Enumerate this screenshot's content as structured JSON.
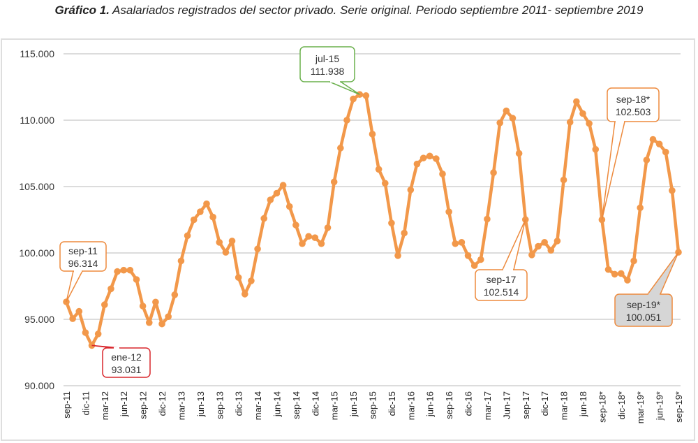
{
  "title": {
    "bold": "Gráfico 1.",
    "rest": " Asalariados registrados del sector privado. Serie original. Periodo septiembre 2011- septiembre 2019"
  },
  "colors": {
    "line": "#f2984a",
    "grid": "#dcdcdc",
    "anno_orange": "#ed8a3d",
    "anno_red": "#d9262c",
    "anno_green": "#6ab04c",
    "anno_gray_fill": "#d6d6d6"
  },
  "chart_data": {
    "type": "line",
    "title": "Gráfico 1. Asalariados registrados del sector privado. Serie original. Periodo septiembre 2011- septiembre 2019",
    "xlabel": "",
    "ylabel": "",
    "ylim": [
      90000,
      115000
    ],
    "yticks": [
      90000,
      95000,
      100000,
      105000,
      110000,
      115000
    ],
    "ytick_labels": [
      "90.000",
      "95.000",
      "100.000",
      "105.000",
      "110.000",
      "115.000"
    ],
    "grid": true,
    "legend": "none",
    "x": [
      "sep-11",
      "oct-11",
      "nov-11",
      "dic-11",
      "ene-12",
      "feb-12",
      "mar-12",
      "abr-12",
      "may-12",
      "jun-12",
      "jul-12",
      "ago-12",
      "sep-12",
      "oct-12",
      "nov-12",
      "dic-12",
      "ene-13",
      "feb-13",
      "mar-13",
      "abr-13",
      "may-13",
      "jun-13",
      "jul-13",
      "ago-13",
      "sep-13",
      "oct-13",
      "nov-13",
      "dic-13",
      "ene-14",
      "feb-14",
      "mar-14",
      "abr-14",
      "may-14",
      "jun-14",
      "jul-14",
      "ago-14",
      "sep-14",
      "oct-14",
      "nov-14",
      "dic-14",
      "ene-15",
      "feb-15",
      "mar-15",
      "abr-15",
      "may-15",
      "jun-15",
      "jul-15",
      "ago-15",
      "sep-15",
      "oct-15",
      "nov-15",
      "dic-15",
      "ene-16",
      "feb-16",
      "mar-16",
      "abr-16",
      "may-16",
      "jun-16",
      "jul-16",
      "ago-16",
      "sep-16",
      "oct-16",
      "nov-16",
      "dic-16",
      "ene-17",
      "feb-17",
      "mar-17",
      "abr-17",
      "may-17",
      "jun-17",
      "jul-17",
      "ago-17",
      "sep-17",
      "oct-17",
      "nov-17",
      "dic-17",
      "ene-18",
      "feb-18",
      "mar-18",
      "abr-18",
      "may-18",
      "jun-18",
      "jul-18",
      "ago-18",
      "sep-18*",
      "oct-18*",
      "nov-18*",
      "dic-18*",
      "ene-19*",
      "feb-19*",
      "mar-19*",
      "abr-19*",
      "may-19*",
      "jun-19*",
      "jul-19*",
      "ago-19*",
      "sep-19*"
    ],
    "xtick_labels": [
      "sep-11",
      "dic-11",
      "mar-12",
      "jun-12",
      "sep-12",
      "dic-12",
      "mar-13",
      "jun-13",
      "sep-13",
      "dic-13",
      "mar-14",
      "jun-14",
      "sep-14",
      "dic-14",
      "mar-15",
      "jun-15",
      "sep-15",
      "dic-15",
      "mar-16",
      "jun-16",
      "sep-16",
      "dic-16",
      "mar-17",
      "Jun-17",
      "sep-17",
      "dic-17",
      "mar-18",
      "jun-18",
      "sep-18*",
      "dic-18*",
      "mar-19*",
      "jun-19*",
      "sep-19*"
    ],
    "xtick_every": 3,
    "series": [
      {
        "name": "Asalariados registrados del sector privado",
        "values": [
          96314,
          95050,
          95600,
          94000,
          93031,
          93900,
          96100,
          97300,
          98600,
          98700,
          98700,
          98000,
          96000,
          94750,
          96300,
          94650,
          95200,
          96850,
          99400,
          101300,
          102500,
          103100,
          103700,
          102700,
          100800,
          100050,
          100900,
          98150,
          96900,
          97900,
          100300,
          102600,
          104000,
          104500,
          105100,
          103500,
          102100,
          100700,
          101250,
          101150,
          100700,
          101900,
          105350,
          107900,
          110000,
          111600,
          111938,
          111850,
          108950,
          106300,
          105250,
          102250,
          99800,
          101500,
          104750,
          106700,
          107150,
          107300,
          107100,
          105950,
          103100,
          100700,
          100800,
          99800,
          99050,
          99500,
          102550,
          106050,
          109800,
          110700,
          110150,
          107500,
          102514,
          99850,
          100500,
          100800,
          100200,
          100900,
          105500,
          109850,
          111400,
          110500,
          109750,
          107800,
          102503,
          98750,
          98400,
          98450,
          97950,
          99400,
          103400,
          107000,
          108550,
          108200,
          107600,
          104700,
          100051
        ]
      }
    ],
    "annotations": [
      {
        "label": "sep-11",
        "value": "96.314",
        "index": 0,
        "style": "orange"
      },
      {
        "label": "ene-12",
        "value": "93.031",
        "index": 4,
        "style": "red"
      },
      {
        "label": "jul-15",
        "value": "111.938",
        "index": 46,
        "style": "green"
      },
      {
        "label": "sep-17",
        "value": "102.514",
        "index": 72,
        "style": "orange"
      },
      {
        "label": "sep-18*",
        "value": "102.503",
        "index": 84,
        "style": "orange"
      },
      {
        "label": "sep-19*",
        "value": "100.051",
        "index": 96,
        "style": "gray"
      }
    ]
  }
}
